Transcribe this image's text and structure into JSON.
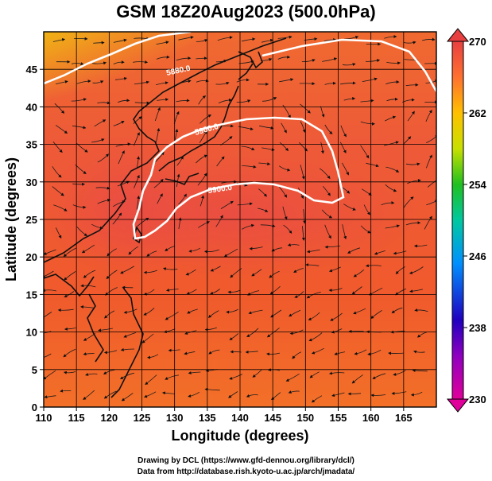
{
  "title": "GSM 18Z20Aug2023 (500.0hPa)",
  "xlabel": "Longitude (degrees)",
  "ylabel": "Latitude  (degrees)",
  "x_ticks": [
    "110",
    "115",
    "120",
    "125",
    "130",
    "135",
    "140",
    "145",
    "150",
    "155",
    "160",
    "165"
  ],
  "y_ticks": [
    "0",
    "5",
    "10",
    "15",
    "20",
    "25",
    "30",
    "35",
    "40",
    "45"
  ],
  "colorbar_ticks": [
    "230",
    "238",
    "246",
    "254",
    "262",
    "270"
  ],
  "contour_labels": [
    "5880.0",
    "5900.0",
    "5900.0"
  ],
  "credits": [
    "Drawing by DCL (https://www.gfd-dennou.org/library/dcl/)",
    "Data from http://database.rish.kyoto-u.ac.jp/arch/jmadata/"
  ],
  "chart_data": {
    "type": "map",
    "variable": "temperature (K) with geopotential height contours and wind streamlines",
    "level_hPa": 500.0,
    "valid_time": "18Z20Aug2023",
    "x_range_deg": [
      110,
      170
    ],
    "y_range_deg": [
      0,
      50
    ],
    "colorbar_range": [
      230,
      270
    ],
    "colorbar_colors": [
      "#e0009a",
      "#2000c0",
      "#0090ff",
      "#00c8a0",
      "#20c020",
      "#c8e000",
      "#ffc000",
      "#ff7030",
      "#e84040"
    ],
    "contours_m": [
      5880,
      5900
    ],
    "contour_color": "#ffffff",
    "grid": true
  }
}
